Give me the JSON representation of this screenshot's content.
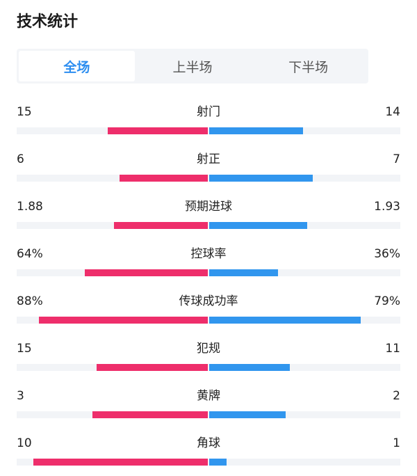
{
  "header": {
    "title": "技术统计"
  },
  "tabs": [
    {
      "label": "全场",
      "active": true
    },
    {
      "label": "上半场",
      "active": false
    },
    {
      "label": "下半场",
      "active": false
    }
  ],
  "colors": {
    "home": "#ee2e6b",
    "away": "#3196ee",
    "tab_active": "#2d8ef0"
  },
  "stats": [
    {
      "label": "射门",
      "home": "15",
      "away": "14",
      "home_fraction": 0.52,
      "away_fraction": 0.49
    },
    {
      "label": "射正",
      "home": "6",
      "away": "7",
      "home_fraction": 0.46,
      "away_fraction": 0.54
    },
    {
      "label": "预期进球",
      "home": "1.88",
      "away": "1.93",
      "home_fraction": 0.49,
      "away_fraction": 0.51
    },
    {
      "label": "控球率",
      "home": "64%",
      "away": "36%",
      "home_fraction": 0.64,
      "away_fraction": 0.36
    },
    {
      "label": "传球成功率",
      "home": "88%",
      "away": "79%",
      "home_fraction": 0.88,
      "away_fraction": 0.79
    },
    {
      "label": "犯规",
      "home": "15",
      "away": "11",
      "home_fraction": 0.58,
      "away_fraction": 0.42
    },
    {
      "label": "黄牌",
      "home": "3",
      "away": "2",
      "home_fraction": 0.6,
      "away_fraction": 0.4
    },
    {
      "label": "角球",
      "home": "10",
      "away": "1",
      "home_fraction": 0.91,
      "away_fraction": 0.09
    }
  ]
}
